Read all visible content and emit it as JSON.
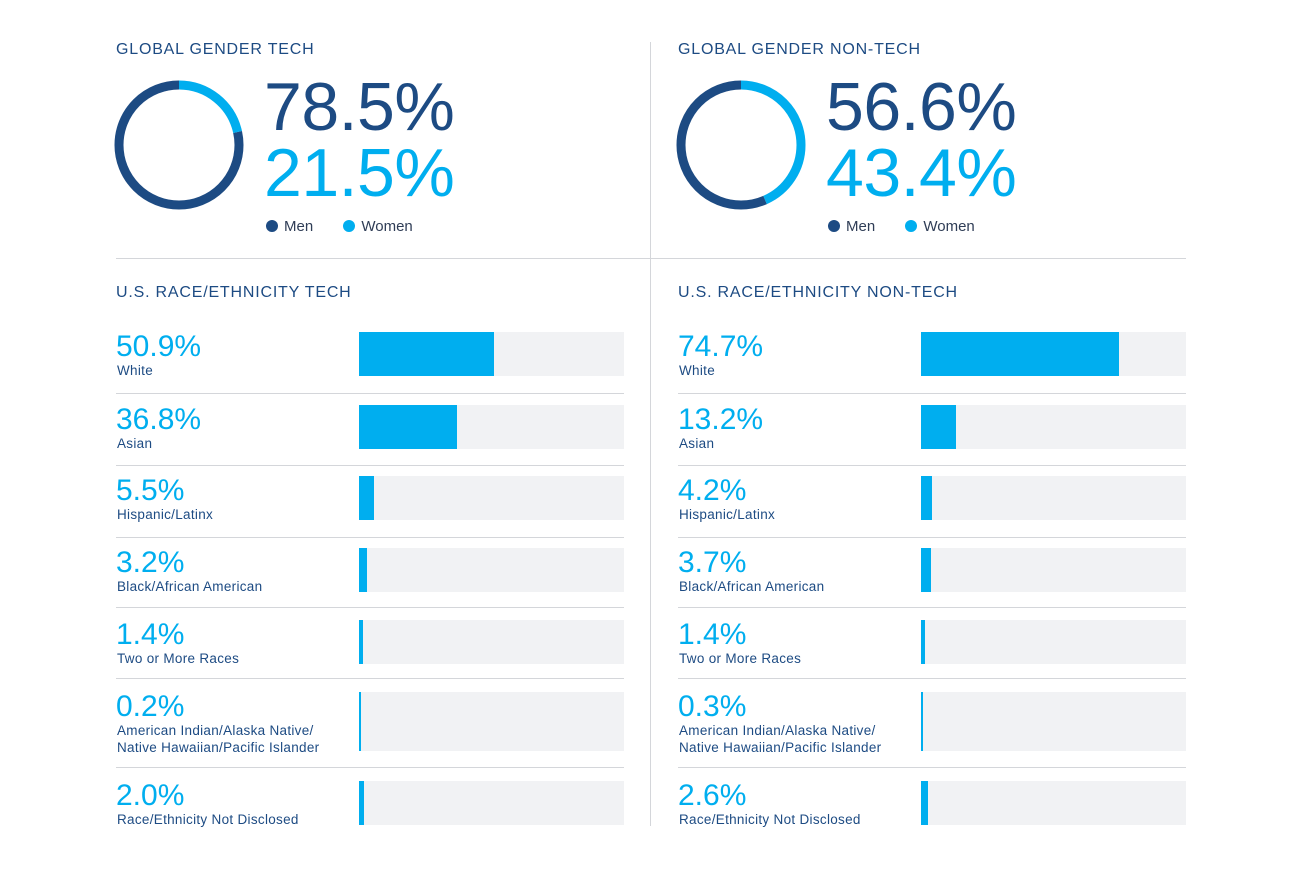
{
  "gender": {
    "legend": {
      "men": "Men",
      "women": "Women"
    },
    "colors": {
      "men": "#1d4b83",
      "women": "#00aeef"
    },
    "tech": {
      "title": "GLOBAL GENDER TECH",
      "men_label": "78.5%",
      "women_label": "21.5%"
    },
    "nontech": {
      "title": "GLOBAL GENDER NON-TECH",
      "men_label": "56.6%",
      "women_label": "43.4%"
    }
  },
  "race": {
    "tech": {
      "title": "U.S. RACE/ETHNICITY TECH",
      "rows": [
        {
          "pct": "50.9%",
          "label": "White"
        },
        {
          "pct": "36.8%",
          "label": "Asian"
        },
        {
          "pct": "5.5%",
          "label": "Hispanic/Latinx"
        },
        {
          "pct": "3.2%",
          "label": "Black/African American"
        },
        {
          "pct": "1.4%",
          "label": "Two or More Races"
        },
        {
          "pct": "0.2%",
          "label": "American Indian/Alaska Native/",
          "label2": "Native Hawaiian/Pacific Islander"
        },
        {
          "pct": "2.0%",
          "label": "Race/Ethnicity Not Disclosed"
        }
      ]
    },
    "nontech": {
      "title": "U.S. RACE/ETHNICITY NON-TECH",
      "rows": [
        {
          "pct": "74.7%",
          "label": "White"
        },
        {
          "pct": "13.2%",
          "label": "Asian"
        },
        {
          "pct": "4.2%",
          "label": "Hispanic/Latinx"
        },
        {
          "pct": "3.7%",
          "label": "Black/African American"
        },
        {
          "pct": "1.4%",
          "label": "Two or More Races"
        },
        {
          "pct": "0.3%",
          "label": "American Indian/Alaska Native/",
          "label2": "Native Hawaiian/Pacific Islander"
        },
        {
          "pct": "2.6%",
          "label": "Race/Ethnicity Not Disclosed"
        }
      ]
    }
  },
  "chart_data": [
    {
      "type": "pie",
      "title": "GLOBAL GENDER TECH",
      "categories": [
        "Men",
        "Women"
      ],
      "values": [
        78.5,
        21.5
      ]
    },
    {
      "type": "pie",
      "title": "GLOBAL GENDER NON-TECH",
      "categories": [
        "Men",
        "Women"
      ],
      "values": [
        56.6,
        43.4
      ]
    },
    {
      "type": "bar",
      "title": "U.S. RACE/ETHNICITY TECH",
      "categories": [
        "White",
        "Asian",
        "Hispanic/Latinx",
        "Black/African American",
        "Two or More Races",
        "American Indian/Alaska Native/Native Hawaiian/Pacific Islander",
        "Race/Ethnicity Not Disclosed"
      ],
      "values": [
        50.9,
        36.8,
        5.5,
        3.2,
        1.4,
        0.2,
        2.0
      ],
      "ylim": [
        0,
        100
      ]
    },
    {
      "type": "bar",
      "title": "U.S. RACE/ETHNICITY NON-TECH",
      "categories": [
        "White",
        "Asian",
        "Hispanic/Latinx",
        "Black/African American",
        "Two or More Races",
        "American Indian/Alaska Native/Native Hawaiian/Pacific Islander",
        "Race/Ethnicity Not Disclosed"
      ],
      "values": [
        74.7,
        13.2,
        4.2,
        3.7,
        1.4,
        0.3,
        2.6
      ],
      "ylim": [
        0,
        100
      ]
    }
  ]
}
